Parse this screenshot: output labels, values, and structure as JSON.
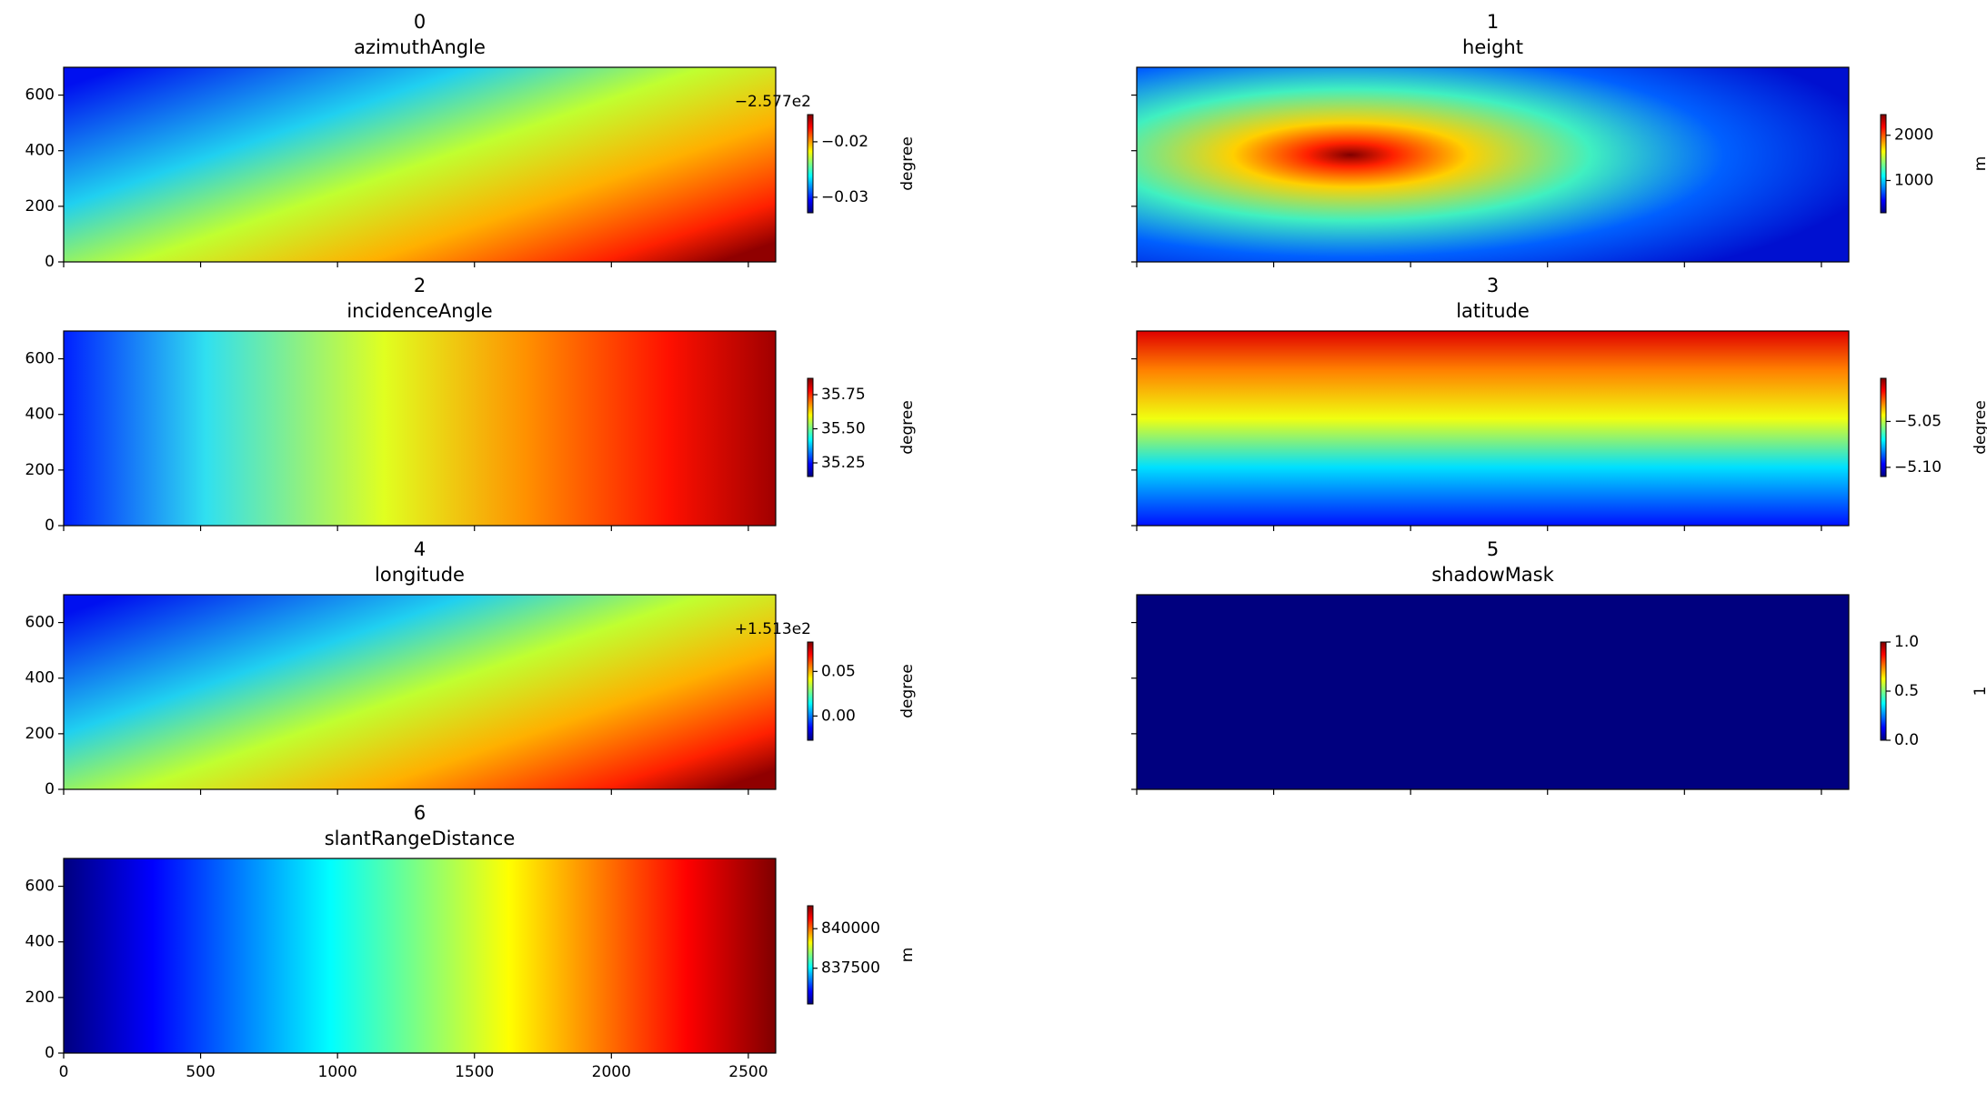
{
  "chart_data": [
    {
      "type": "heatmap",
      "index_label": "0",
      "title": "azimuthAngle",
      "colormap": "jet",
      "xlim": [
        0,
        2600
      ],
      "xticks": [
        0,
        500,
        1000,
        1500,
        2000,
        2500
      ],
      "xtick_labels": false,
      "ylim": [
        0,
        700
      ],
      "yticks": [
        0,
        200,
        400,
        600
      ],
      "ytick_labels": true,
      "colorbar": {
        "label": "degree",
        "offset_text": "−2.577e2",
        "lim": [
          -0.0328,
          -0.0151
        ],
        "ticks": [
          {
            "value": -0.03,
            "label": "−0.03"
          },
          {
            "value": -0.02,
            "label": "−0.02"
          }
        ]
      }
    },
    {
      "type": "heatmap",
      "index_label": "1",
      "title": "height",
      "colormap": "jet",
      "xlim": [
        0,
        2600
      ],
      "xticks": [
        0,
        500,
        1000,
        1500,
        2000,
        2500
      ],
      "xtick_labels": false,
      "ylim": [
        0,
        700
      ],
      "yticks": [
        0,
        200,
        400,
        600
      ],
      "ytick_labels": false,
      "colorbar": {
        "label": "m",
        "lim": [
          286,
          2457
        ],
        "ticks": [
          1000,
          2000
        ]
      }
    },
    {
      "type": "heatmap",
      "index_label": "2",
      "title": "incidenceAngle",
      "colormap": "jet",
      "xlim": [
        0,
        2600
      ],
      "xticks": [
        0,
        500,
        1000,
        1500,
        2000,
        2500
      ],
      "xtick_labels": false,
      "ylim": [
        0,
        700
      ],
      "yticks": [
        0,
        200,
        400,
        600
      ],
      "ytick_labels": true,
      "colorbar": {
        "label": "degree",
        "lim": [
          35.15,
          35.87
        ],
        "ticks": [
          35.25,
          {
            "value": 35.5,
            "label": "35.50"
          },
          35.75
        ]
      }
    },
    {
      "type": "heatmap",
      "index_label": "3",
      "title": "latitude",
      "colormap": "jet",
      "xlim": [
        0,
        2600
      ],
      "xticks": [
        0,
        500,
        1000,
        1500,
        2000,
        2500
      ],
      "xtick_labels": false,
      "ylim": [
        0,
        700
      ],
      "yticks": [
        0,
        200,
        400,
        600
      ],
      "ytick_labels": false,
      "colorbar": {
        "label": "degree",
        "lim": [
          -5.11,
          -5.003
        ],
        "ticks": [
          {
            "value": -5.1,
            "label": "−5.10"
          },
          {
            "value": -5.05,
            "label": "−5.05"
          }
        ]
      }
    },
    {
      "type": "heatmap",
      "index_label": "4",
      "title": "longitude",
      "colormap": "jet",
      "xlim": [
        0,
        2600
      ],
      "xticks": [
        0,
        500,
        1000,
        1500,
        2000,
        2500
      ],
      "xtick_labels": false,
      "ylim": [
        0,
        700
      ],
      "yticks": [
        0,
        200,
        400,
        600
      ],
      "ytick_labels": true,
      "colorbar": {
        "label": "degree",
        "offset_text": "+1.513e2",
        "lim": [
          -0.0272,
          0.083
        ],
        "ticks": [
          {
            "value": 0,
            "label": "0.00"
          },
          0.05
        ]
      }
    },
    {
      "type": "heatmap",
      "index_label": "5",
      "title": "shadowMask",
      "colormap": "jet",
      "xlim": [
        0,
        2600
      ],
      "xticks": [
        0,
        500,
        1000,
        1500,
        2000,
        2500
      ],
      "xtick_labels": false,
      "ylim": [
        0,
        700
      ],
      "yticks": [
        0,
        200,
        400,
        600
      ],
      "ytick_labels": false,
      "colorbar": {
        "label": "1",
        "lim": [
          0,
          1
        ],
        "ticks": [
          {
            "value": 0,
            "label": "0.0"
          },
          0.5,
          {
            "value": 1,
            "label": "1.0"
          }
        ]
      }
    },
    {
      "type": "heatmap",
      "index_label": "6",
      "title": "slantRangeDistance",
      "colormap": "jet",
      "xlim": [
        0,
        2600
      ],
      "xticks": [
        0,
        500,
        1000,
        1500,
        2000,
        2500
      ],
      "xtick_labels": true,
      "ylim": [
        0,
        700
      ],
      "yticks": [
        0,
        200,
        400,
        600
      ],
      "ytick_labels": true,
      "colorbar": {
        "label": "m",
        "lim": [
          835240,
          841450
        ],
        "ticks": [
          837500,
          840000
        ]
      }
    }
  ]
}
